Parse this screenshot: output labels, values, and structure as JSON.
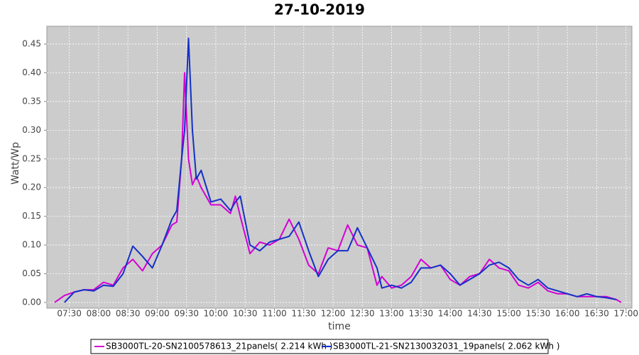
{
  "chart_data": {
    "type": "line",
    "title": "27-10-2019",
    "x_label": "time",
    "y_label": "Watt/Wp",
    "x": [
      "07:15",
      "07:25",
      "07:35",
      "07:45",
      "07:55",
      "08:05",
      "08:15",
      "08:25",
      "08:35",
      "08:45",
      "08:55",
      "09:05",
      "09:15",
      "09:20",
      "09:25",
      "09:28",
      "09:32",
      "09:36",
      "09:40",
      "09:45",
      "09:55",
      "10:05",
      "10:15",
      "10:20",
      "10:25",
      "10:35",
      "10:45",
      "10:55",
      "11:05",
      "11:15",
      "11:25",
      "11:35",
      "11:45",
      "11:55",
      "12:05",
      "12:15",
      "12:25",
      "12:35",
      "12:45",
      "12:50",
      "13:00",
      "13:10",
      "13:20",
      "13:30",
      "13:40",
      "13:50",
      "14:00",
      "14:10",
      "14:20",
      "14:30",
      "14:40",
      "14:50",
      "15:00",
      "15:10",
      "15:20",
      "15:30",
      "15:40",
      "15:50",
      "16:00",
      "16:10",
      "16:20",
      "16:30",
      "16:40",
      "16:50",
      "16:55"
    ],
    "series": [
      {
        "name": "SB3000TL-20-SN2100578613_21panels( 2.214 kWh )",
        "color": "#d400d4",
        "values": [
          0,
          0.012,
          0.018,
          0.022,
          0.022,
          0.035,
          0.03,
          0.06,
          0.075,
          0.055,
          0.085,
          0.1,
          0.135,
          0.14,
          0.25,
          0.4,
          0.25,
          0.205,
          0.22,
          0.2,
          0.17,
          0.17,
          0.155,
          0.185,
          0.15,
          0.085,
          0.105,
          0.1,
          0.11,
          0.145,
          0.11,
          0.065,
          0.05,
          0.095,
          0.09,
          0.135,
          0.1,
          0.095,
          0.03,
          0.045,
          0.025,
          0.03,
          0.045,
          0.075,
          0.06,
          0.065,
          0.04,
          0.03,
          0.045,
          0.05,
          0.075,
          0.06,
          0.055,
          0.03,
          0.025,
          0.035,
          0.02,
          0.015,
          0.015,
          0.01,
          0.01,
          0.01,
          0.01,
          0.005,
          0
        ]
      },
      {
        "name": "SB3000TL-21-SN2130032031_19panels( 2.062 kWh )",
        "color": "#1430c8",
        "values": [
          null,
          0,
          0.018,
          0.022,
          0.02,
          0.03,
          0.028,
          0.05,
          0.098,
          0.08,
          0.06,
          0.1,
          0.145,
          0.16,
          0.25,
          0.3,
          0.46,
          0.3,
          0.215,
          0.23,
          0.175,
          0.18,
          0.16,
          0.175,
          0.185,
          0.1,
          0.09,
          0.105,
          0.11,
          0.115,
          0.14,
          0.09,
          0.045,
          0.075,
          0.09,
          0.09,
          0.13,
          0.095,
          0.06,
          0.025,
          0.03,
          0.025,
          0.035,
          0.06,
          0.06,
          0.065,
          0.05,
          0.03,
          0.04,
          0.05,
          0.065,
          0.07,
          0.06,
          0.04,
          0.03,
          0.04,
          0.025,
          0.02,
          0.015,
          0.01,
          0.015,
          0.01,
          0.008,
          0.005,
          null
        ]
      }
    ],
    "xlim": [
      "07:07",
      "17:06"
    ],
    "xticks": [
      "07:30",
      "08:00",
      "08:30",
      "09:00",
      "09:30",
      "10:00",
      "10:30",
      "11:00",
      "11:30",
      "12:00",
      "12:30",
      "13:00",
      "13:30",
      "14:00",
      "14:30",
      "15:00",
      "15:30",
      "16:00",
      "16:30",
      "17:00"
    ],
    "ylim": [
      -0.01,
      0.481
    ],
    "yticks": [
      {
        "value": 0,
        "label": "0.00"
      },
      0.05,
      {
        "value": 0.1,
        "label": "0.10"
      },
      0.15,
      {
        "value": 0.2,
        "label": "0.20"
      },
      0.25,
      {
        "value": 0.3,
        "label": "0.30"
      },
      0.35,
      {
        "value": 0.4,
        "label": "0.40"
      },
      0.45
    ],
    "grid": true
  }
}
